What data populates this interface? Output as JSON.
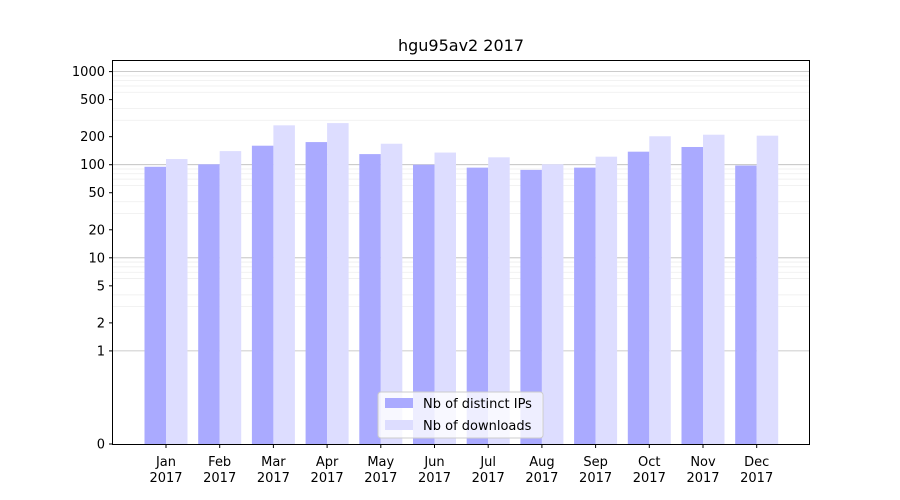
{
  "chart_data": {
    "type": "bar",
    "title": "hgu95av2 2017",
    "xlabel": "",
    "ylabel": "",
    "y_scale": "symlog",
    "ylim": [
      0,
      1300
    ],
    "y_ticks": [
      0,
      1,
      2,
      5,
      10,
      20,
      50,
      100,
      200,
      500,
      1000
    ],
    "grid": true,
    "legend_position": "lower-center",
    "categories": [
      [
        "Jan",
        "2017"
      ],
      [
        "Feb",
        "2017"
      ],
      [
        "Mar",
        "2017"
      ],
      [
        "Apr",
        "2017"
      ],
      [
        "May",
        "2017"
      ],
      [
        "Jun",
        "2017"
      ],
      [
        "Jul",
        "2017"
      ],
      [
        "Aug",
        "2017"
      ],
      [
        "Sep",
        "2017"
      ],
      [
        "Oct",
        "2017"
      ],
      [
        "Nov",
        "2017"
      ],
      [
        "Dec",
        "2017"
      ]
    ],
    "series": [
      {
        "name": "Nb of distinct IPs",
        "color": "#aaaaff",
        "values": [
          95,
          101,
          160,
          175,
          130,
          100,
          93,
          88,
          93,
          138,
          155,
          98
        ]
      },
      {
        "name": "Nb of downloads",
        "color": "#ddddff",
        "values": [
          115,
          140,
          265,
          280,
          168,
          135,
          120,
          101,
          122,
          202,
          210,
          205
        ]
      }
    ]
  }
}
